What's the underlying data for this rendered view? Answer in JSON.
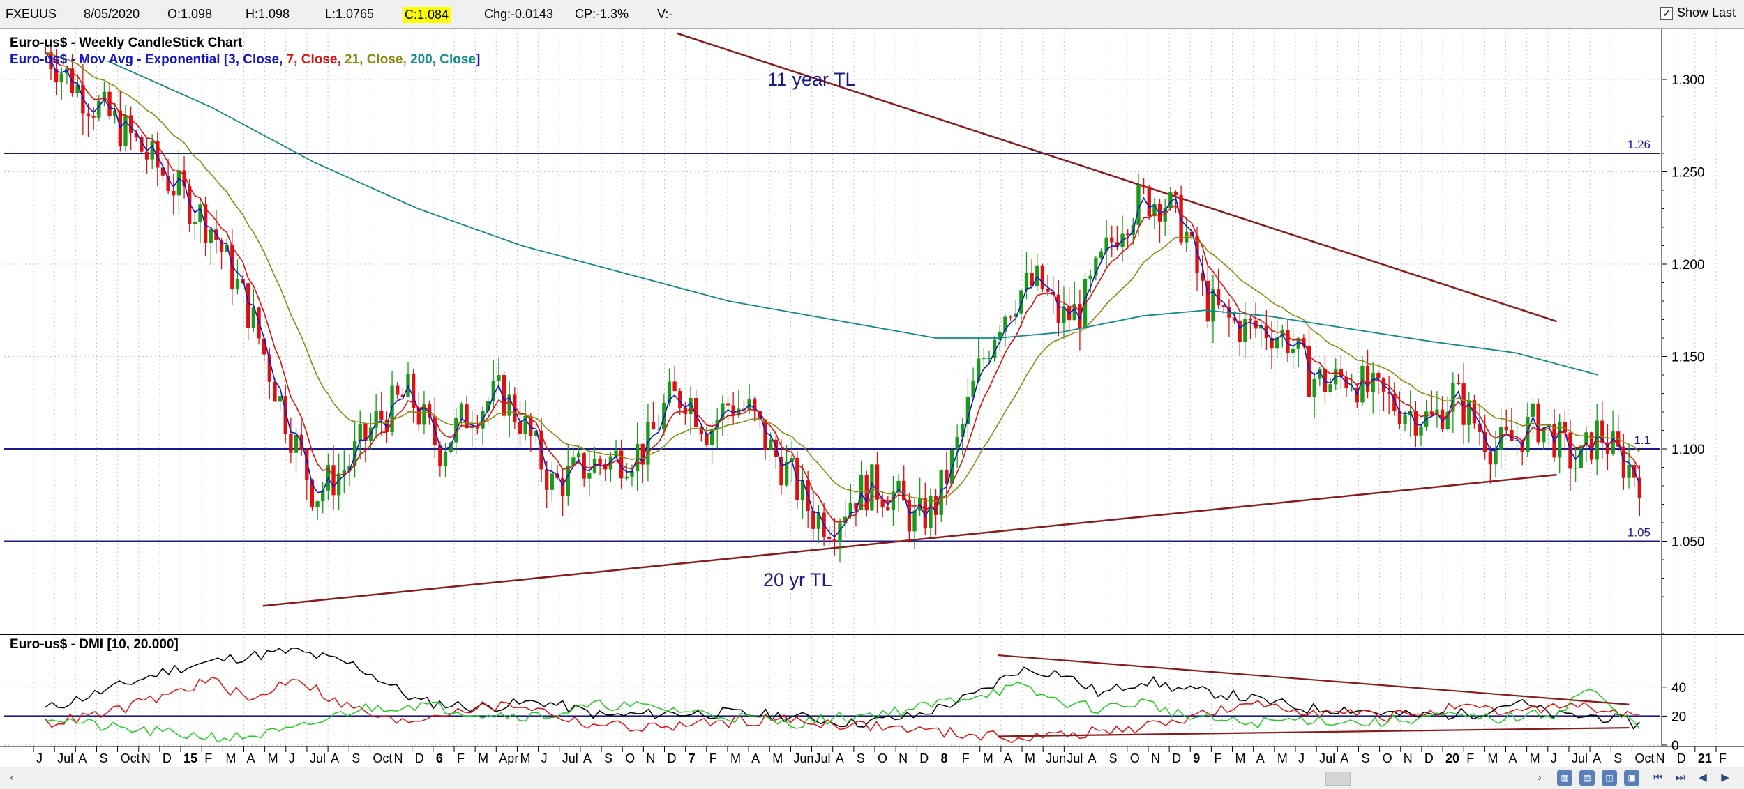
{
  "header": {
    "symbol": "FXEUUS",
    "date": "8/05/2020",
    "open": "O:1.098",
    "high": "H:1.098",
    "low": "L:1.0765",
    "close": "C:1.084",
    "change": "Chg:-0.0143",
    "change_pct": "CP:-1.3%",
    "volume": "V:-",
    "show_last_label": "Show Last",
    "show_last_checked": true
  },
  "chart_data": [
    {
      "type": "candlestick",
      "title_line1": "Euro-us$ - Weekly CandleStick Chart",
      "legend": {
        "prefix": "Euro-us$ - Mov Avg - Exponential [",
        "items": [
          {
            "text": "3, Close, ",
            "color": "#1515c8"
          },
          {
            "text": "7, Close, ",
            "color": "#e01010"
          },
          {
            "text": "21, Close, ",
            "color": "#8a8a10"
          },
          {
            "text": "200, Close",
            "color": "#108a8a"
          }
        ],
        "suffix": "]"
      },
      "y_ticks": [
        "1.300",
        "1.250",
        "1.200",
        "1.150",
        "1.100",
        "1.050"
      ],
      "ylim": [
        1.0,
        1.32
      ],
      "x_labels": [
        "J",
        "Jul",
        "A",
        "S",
        "Oct",
        "N",
        "D",
        "15",
        "F",
        "M",
        "A",
        "M",
        "J",
        "Jul",
        "A",
        "S",
        "Oct",
        "N",
        "D",
        "6",
        "F",
        "M",
        "Apr",
        "M",
        "J",
        "Jul",
        "A",
        "S",
        "O",
        "N",
        "D",
        "7",
        "F",
        "M",
        "A",
        "M",
        "Jun",
        "Jul",
        "A",
        "S",
        "O",
        "N",
        "D",
        "8",
        "F",
        "M",
        "A",
        "M",
        "Jun",
        "Jul",
        "A",
        "S",
        "O",
        "N",
        "D",
        "9",
        "F",
        "M",
        "A",
        "M",
        "J",
        "Jul",
        "A",
        "S",
        "O",
        "N",
        "D",
        "20",
        "F",
        "M",
        "A",
        "M",
        "J",
        "Jul",
        "A",
        "S",
        "Oct",
        "N",
        "D",
        "21",
        "F"
      ],
      "horizontal_levels": [
        {
          "value": 1.26,
          "label": "1.26"
        },
        {
          "value": 1.1,
          "label": "1.1"
        },
        {
          "value": 1.05,
          "label": "1.05"
        }
      ],
      "annotations": [
        {
          "text": "11 year TL"
        },
        {
          "text": "20 yr TL"
        }
      ],
      "trendlines": [
        {
          "name": "11 year TL",
          "from": [
            0.15,
            1.325
          ],
          "to": [
            1.0,
            1.169
          ]
        },
        {
          "name": "20 yr TL",
          "from": [
            -0.25,
            1.015
          ],
          "to": [
            1.0,
            1.086
          ]
        }
      ],
      "price_path": [
        [
          -0.46,
          1.315
        ],
        [
          -0.42,
          1.29
        ],
        [
          -0.38,
          1.27
        ],
        [
          -0.34,
          1.245
        ],
        [
          -0.3,
          1.22
        ],
        [
          -0.26,
          1.17
        ],
        [
          -0.23,
          1.12
        ],
        [
          -0.2,
          1.075
        ],
        [
          -0.17,
          1.09
        ],
        [
          -0.14,
          1.115
        ],
        [
          -0.11,
          1.13
        ],
        [
          -0.08,
          1.1
        ],
        [
          -0.05,
          1.12
        ],
        [
          -0.02,
          1.13
        ],
        [
          0.0,
          1.115
        ],
        [
          0.03,
          1.08
        ],
        [
          0.06,
          1.09
        ],
        [
          0.09,
          1.095
        ],
        [
          0.12,
          1.1
        ],
        [
          0.14,
          1.125
        ],
        [
          0.16,
          1.13
        ],
        [
          0.18,
          1.11
        ],
        [
          0.2,
          1.125
        ],
        [
          0.22,
          1.12
        ],
        [
          0.24,
          1.1
        ],
        [
          0.26,
          1.085
        ],
        [
          0.28,
          1.065
        ],
        [
          0.3,
          1.06
        ],
        [
          0.32,
          1.075
        ],
        [
          0.34,
          1.08
        ],
        [
          0.36,
          1.075
        ],
        [
          0.38,
          1.06
        ],
        [
          0.4,
          1.07
        ],
        [
          0.42,
          1.1
        ],
        [
          0.44,
          1.14
        ],
        [
          0.46,
          1.17
        ],
        [
          0.48,
          1.185
        ],
        [
          0.5,
          1.19
        ],
        [
          0.52,
          1.17
        ],
        [
          0.54,
          1.175
        ],
        [
          0.56,
          1.2
        ],
        [
          0.58,
          1.225
        ],
        [
          0.6,
          1.235
        ],
        [
          0.62,
          1.235
        ],
        [
          0.64,
          1.22
        ],
        [
          0.66,
          1.18
        ],
        [
          0.68,
          1.17
        ],
        [
          0.7,
          1.165
        ],
        [
          0.72,
          1.165
        ],
        [
          0.74,
          1.16
        ],
        [
          0.76,
          1.14
        ],
        [
          0.78,
          1.135
        ],
        [
          0.8,
          1.14
        ],
        [
          0.82,
          1.13
        ],
        [
          0.84,
          1.125
        ],
        [
          0.86,
          1.12
        ],
        [
          0.88,
          1.115
        ],
        [
          0.9,
          1.13
        ],
        [
          0.92,
          1.115
        ],
        [
          0.94,
          1.1
        ],
        [
          0.96,
          1.105
        ],
        [
          0.98,
          1.115
        ],
        [
          1.0,
          1.105
        ],
        [
          1.02,
          1.09
        ],
        [
          1.04,
          1.11
        ],
        [
          1.06,
          1.095
        ],
        [
          1.08,
          1.085
        ]
      ],
      "ema200_path": [
        [
          -0.4,
          1.31
        ],
        [
          -0.3,
          1.285
        ],
        [
          -0.2,
          1.255
        ],
        [
          -0.1,
          1.23
        ],
        [
          0.0,
          1.21
        ],
        [
          0.1,
          1.195
        ],
        [
          0.2,
          1.18
        ],
        [
          0.3,
          1.17
        ],
        [
          0.4,
          1.16
        ],
        [
          0.46,
          1.16
        ],
        [
          0.52,
          1.163
        ],
        [
          0.6,
          1.172
        ],
        [
          0.66,
          1.175
        ],
        [
          0.72,
          1.172
        ],
        [
          0.8,
          1.165
        ],
        [
          0.88,
          1.158
        ],
        [
          0.96,
          1.152
        ],
        [
          1.04,
          1.14
        ]
      ]
    },
    {
      "type": "line",
      "title": "Euro-us$ - DMI [10, 20.000]",
      "y_ticks": [
        "40",
        "20",
        "0"
      ],
      "ylim": [
        0,
        75
      ],
      "series": [
        {
          "color": "#000000",
          "values": [
            [
              -0.46,
              25
            ],
            [
              -0.4,
              38
            ],
            [
              -0.34,
              52
            ],
            [
              -0.28,
              60
            ],
            [
              -0.22,
              65
            ],
            [
              -0.16,
              55
            ],
            [
              -0.1,
              30
            ],
            [
              -0.04,
              26
            ],
            [
              0.02,
              30
            ],
            [
              0.08,
              20
            ],
            [
              0.14,
              22
            ],
            [
              0.2,
              22
            ],
            [
              0.26,
              20
            ],
            [
              0.32,
              15
            ],
            [
              0.38,
              20
            ],
            [
              0.44,
              35
            ],
            [
              0.48,
              52
            ],
            [
              0.52,
              50
            ],
            [
              0.56,
              35
            ],
            [
              0.6,
              45
            ],
            [
              0.64,
              38
            ],
            [
              0.68,
              35
            ],
            [
              0.72,
              30
            ],
            [
              0.76,
              25
            ],
            [
              0.8,
              25
            ],
            [
              0.86,
              20
            ],
            [
              0.92,
              22
            ],
            [
              0.96,
              30
            ],
            [
              1.0,
              20
            ],
            [
              1.04,
              20
            ],
            [
              1.08,
              14
            ]
          ]
        },
        {
          "color": "#e01010",
          "values": [
            [
              -0.46,
              15
            ],
            [
              -0.4,
              22
            ],
            [
              -0.34,
              35
            ],
            [
              -0.3,
              45
            ],
            [
              -0.26,
              30
            ],
            [
              -0.22,
              48
            ],
            [
              -0.18,
              30
            ],
            [
              -0.12,
              15
            ],
            [
              -0.06,
              25
            ],
            [
              0.0,
              28
            ],
            [
              0.06,
              15
            ],
            [
              0.12,
              12
            ],
            [
              0.18,
              15
            ],
            [
              0.24,
              18
            ],
            [
              0.3,
              15
            ],
            [
              0.36,
              12
            ],
            [
              0.42,
              8
            ],
            [
              0.48,
              5
            ],
            [
              0.54,
              8
            ],
            [
              0.6,
              12
            ],
            [
              0.66,
              22
            ],
            [
              0.72,
              28
            ],
            [
              0.78,
              22
            ],
            [
              0.84,
              20
            ],
            [
              0.9,
              25
            ],
            [
              0.96,
              22
            ],
            [
              1.0,
              28
            ],
            [
              1.04,
              25
            ],
            [
              1.08,
              18
            ]
          ]
        },
        {
          "color": "#22cc22",
          "values": [
            [
              -0.46,
              20
            ],
            [
              -0.4,
              12
            ],
            [
              -0.34,
              8
            ],
            [
              -0.28,
              5
            ],
            [
              -0.22,
              10
            ],
            [
              -0.16,
              25
            ],
            [
              -0.1,
              28
            ],
            [
              -0.04,
              22
            ],
            [
              0.02,
              20
            ],
            [
              0.08,
              28
            ],
            [
              0.14,
              25
            ],
            [
              0.2,
              20
            ],
            [
              0.26,
              15
            ],
            [
              0.32,
              20
            ],
            [
              0.38,
              25
            ],
            [
              0.44,
              35
            ],
            [
              0.48,
              40
            ],
            [
              0.52,
              30
            ],
            [
              0.56,
              25
            ],
            [
              0.6,
              30
            ],
            [
              0.64,
              20
            ],
            [
              0.7,
              15
            ],
            [
              0.76,
              18
            ],
            [
              0.82,
              15
            ],
            [
              0.88,
              20
            ],
            [
              0.94,
              18
            ],
            [
              1.0,
              22
            ],
            [
              1.03,
              40
            ],
            [
              1.06,
              20
            ],
            [
              1.08,
              15
            ]
          ]
        }
      ],
      "horizontal_levels": [
        {
          "value": 20
        }
      ],
      "trendlines": [
        {
          "from": [
            0.46,
            62
          ],
          "to": [
            1.07,
            28
          ]
        },
        {
          "from": [
            0.46,
            6
          ],
          "to": [
            1.07,
            12
          ]
        }
      ]
    }
  ],
  "footer": {
    "icons": [
      "calendar-icon",
      "chart-icon",
      "zoom-icon",
      "save-icon"
    ],
    "nav": [
      "first",
      "last",
      "prev",
      "next"
    ]
  }
}
